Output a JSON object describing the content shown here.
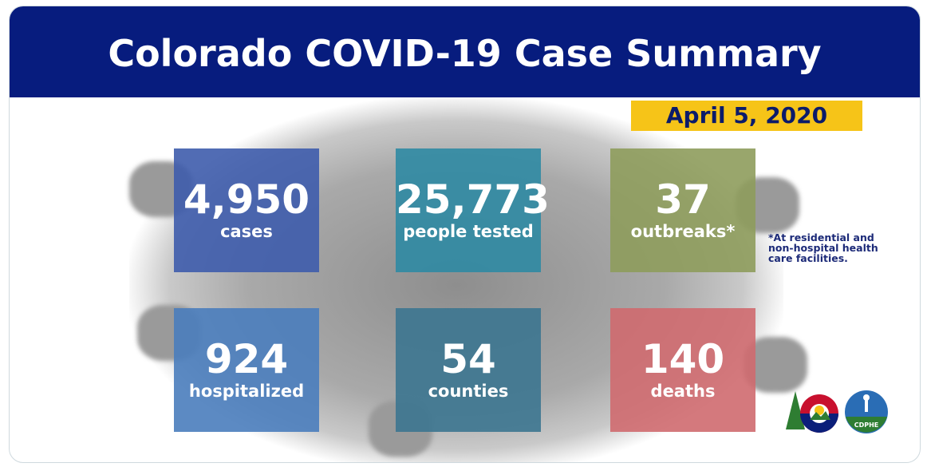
{
  "title": "Colorado COVID-19 Case Summary",
  "date": "April 5, 2020",
  "stats": [
    {
      "value": "4,950",
      "label": "cases",
      "color": "#3e5cac"
    },
    {
      "value": "25,773",
      "label": "people tested",
      "color": "#2f8aa3"
    },
    {
      "value": "37",
      "label": "outbreaks*",
      "color": "#8e9c5c"
    },
    {
      "value": "924",
      "label": "hospitalized",
      "color": "#4a7dbd"
    },
    {
      "value": "54",
      "label": "counties",
      "color": "#3c7590"
    },
    {
      "value": "140",
      "label": "deaths",
      "color": "#cf6a6f"
    }
  ],
  "footnote": "*At residential and non-hospital health care facilities.",
  "logos": {
    "colorado": "Colorado C logo",
    "cdphe": "CDPHE"
  }
}
